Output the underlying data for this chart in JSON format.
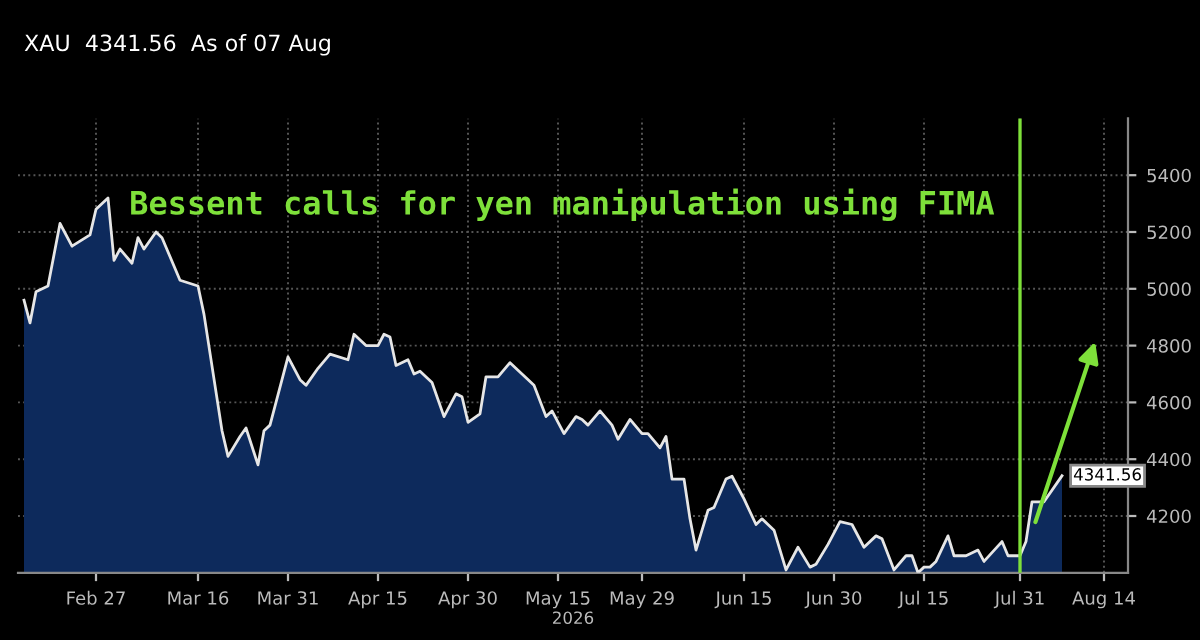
{
  "chart_data": {
    "type": "area",
    "title": "XAU  4341.56  As of 07 Aug",
    "annotations": [
      "Bessent calls for yen manipulation using FIMA"
    ],
    "xlabel": "2026",
    "x": [
      "2026-02-15",
      "2026-02-16",
      "2026-02-17",
      "2026-02-19",
      "2026-02-21",
      "2026-02-23",
      "2026-02-26",
      "2026-02-27",
      "2026-03-01",
      "2026-03-02",
      "2026-03-03",
      "2026-03-05",
      "2026-03-06",
      "2026-03-07",
      "2026-03-09",
      "2026-03-10",
      "2026-03-13",
      "2026-03-16",
      "2026-03-17",
      "2026-03-20",
      "2026-03-21",
      "2026-03-23",
      "2026-03-24",
      "2026-03-26",
      "2026-03-27",
      "2026-03-28",
      "2026-03-31",
      "2026-04-02",
      "2026-04-03",
      "2026-04-05",
      "2026-04-07",
      "2026-04-10",
      "2026-04-11",
      "2026-04-13",
      "2026-04-15",
      "2026-04-16",
      "2026-04-17",
      "2026-04-18",
      "2026-04-20",
      "2026-04-21",
      "2026-04-22",
      "2026-04-24",
      "2026-04-26",
      "2026-04-28",
      "2026-04-29",
      "2026-04-30",
      "2026-05-02",
      "2026-05-03",
      "2026-05-05",
      "2026-05-07",
      "2026-05-09",
      "2026-05-11",
      "2026-05-13",
      "2026-05-14",
      "2026-05-16",
      "2026-05-18",
      "2026-05-19",
      "2026-05-20",
      "2026-05-22",
      "2026-05-24",
      "2026-05-25",
      "2026-05-27",
      "2026-05-29",
      "2026-05-30",
      "2026-06-01",
      "2026-06-02",
      "2026-06-03",
      "2026-06-05",
      "2026-06-06",
      "2026-06-07",
      "2026-06-09",
      "2026-06-10",
      "2026-06-12",
      "2026-06-13",
      "2026-06-15",
      "2026-06-17",
      "2026-06-18",
      "2026-06-20",
      "2026-06-22",
      "2026-06-24",
      "2026-06-26",
      "2026-06-27",
      "2026-06-29",
      "2026-07-01",
      "2026-07-03",
      "2026-07-05",
      "2026-07-07",
      "2026-07-08",
      "2026-07-10",
      "2026-07-12",
      "2026-07-13",
      "2026-07-14",
      "2026-07-15",
      "2026-07-16",
      "2026-07-17",
      "2026-07-19",
      "2026-07-20",
      "2026-07-22",
      "2026-07-24",
      "2026-07-25",
      "2026-07-28",
      "2026-07-29",
      "2026-07-31",
      "2026-08-01",
      "2026-08-02",
      "2026-08-04",
      "2026-08-07"
    ],
    "series": [
      {
        "color": "#0d2a5c",
        "value_labels": [
          null,
          null,
          null,
          null,
          null,
          null,
          null,
          null,
          null,
          null,
          null,
          null,
          null,
          null,
          null,
          null,
          null,
          null,
          null,
          null,
          null,
          null,
          null,
          null,
          null,
          null,
          null,
          null,
          null,
          null,
          null,
          null,
          null,
          null,
          null,
          null,
          null,
          null,
          null,
          null,
          null,
          null,
          null,
          null,
          null,
          null,
          null,
          null,
          null,
          null,
          null,
          null,
          null,
          null,
          null,
          null,
          null,
          null,
          null,
          null,
          null,
          null,
          null,
          null,
          null,
          null,
          null,
          null,
          null,
          null,
          null,
          null,
          null,
          null,
          null,
          null,
          null,
          null,
          null,
          null,
          null,
          null,
          null,
          null,
          null,
          null,
          null,
          null,
          null,
          null,
          null,
          null,
          null,
          null,
          null,
          null,
          null,
          null,
          null,
          null,
          null,
          null,
          null,
          null,
          null,
          null,
          "4341.56"
        ],
        "values": [
          4960,
          4880,
          4990,
          5010,
          5230,
          5150,
          5190,
          5280,
          5320,
          5100,
          5140,
          5090,
          5180,
          5140,
          5200,
          5180,
          5030,
          5010,
          4910,
          4500,
          4410,
          4480,
          4510,
          4380,
          4500,
          4520,
          4760,
          4680,
          4660,
          4720,
          4770,
          4750,
          4840,
          4800,
          4800,
          4840,
          4830,
          4730,
          4750,
          4700,
          4710,
          4670,
          4550,
          4630,
          4620,
          4530,
          4560,
          4690,
          4690,
          4740,
          4700,
          4660,
          4550,
          4570,
          4490,
          4550,
          4540,
          4520,
          4570,
          4520,
          4470,
          4540,
          4490,
          4490,
          4440,
          4480,
          4330,
          4330,
          4190,
          4080,
          4220,
          4230,
          4330,
          4340,
          4260,
          4170,
          4190,
          4150,
          4010,
          4090,
          4020,
          4030,
          4100,
          4180,
          4170,
          4090,
          4130,
          4120,
          4010,
          4060,
          4060,
          4000,
          4020,
          4020,
          4040,
          4130,
          4060,
          4060,
          4080,
          4040,
          4110,
          4060,
          4060,
          4110,
          4250,
          4250,
          4341.56
        ]
      }
    ],
    "xlim": [
      "2026-02-14",
      "2026-08-18"
    ],
    "xticks": [
      {
        "value": "2026-02-27",
        "label": "Feb 27"
      },
      {
        "value": "2026-03-16",
        "label": "Mar 16"
      },
      {
        "value": "2026-03-31",
        "label": "Mar 31"
      },
      {
        "value": "2026-04-15",
        "label": "Apr 15"
      },
      {
        "value": "2026-04-30",
        "label": "Apr 30"
      },
      {
        "value": "2026-05-15",
        "label": "May 15"
      },
      {
        "value": "2026-05-29",
        "label": "May 29"
      },
      {
        "value": "2026-06-15",
        "label": "Jun 15"
      },
      {
        "value": "2026-06-30",
        "label": "Jun 30"
      },
      {
        "value": "2026-07-15",
        "label": "Jul 15"
      },
      {
        "value": "2026-07-31",
        "label": "Jul 31"
      },
      {
        "value": "2026-08-14",
        "label": "Aug 14"
      }
    ],
    "ylim": [
      4000,
      5600
    ],
    "yticks": [
      4200,
      4400,
      4600,
      4800,
      5000,
      5200,
      5400
    ],
    "ref_lines": [
      {
        "axis": "x",
        "value": "2026-07-31",
        "label": null,
        "color": "#7ee03a"
      }
    ],
    "grid": true
  }
}
